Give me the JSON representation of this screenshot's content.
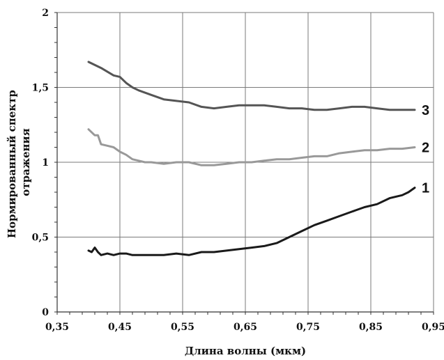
{
  "chart_data": {
    "type": "line",
    "xlabel": "Длина волны (мкм)",
    "ylabel_lines": [
      "Нормированный спектр",
      "отражения"
    ],
    "xlim": [
      0.35,
      0.95
    ],
    "ylim": [
      0,
      2
    ],
    "x_ticks": [
      0.35,
      0.45,
      0.55,
      0.65,
      0.75,
      0.85,
      0.95
    ],
    "x_tick_labels": [
      "0,35",
      "0,45",
      "0,55",
      "0,65",
      "0,75",
      "0,85",
      "0,95"
    ],
    "y_ticks": [
      0,
      0.5,
      1,
      1.5,
      2
    ],
    "y_tick_labels": [
      "0",
      "0,5",
      "1",
      "1,5",
      "2"
    ],
    "grid": true,
    "series": [
      {
        "name": "1",
        "color": "#1a1a1a",
        "x": [
          0.4,
          0.405,
          0.41,
          0.415,
          0.42,
          0.43,
          0.44,
          0.45,
          0.46,
          0.47,
          0.48,
          0.49,
          0.5,
          0.52,
          0.54,
          0.56,
          0.58,
          0.6,
          0.62,
          0.64,
          0.66,
          0.68,
          0.7,
          0.72,
          0.74,
          0.76,
          0.78,
          0.8,
          0.82,
          0.84,
          0.86,
          0.88,
          0.9,
          0.91,
          0.92
        ],
        "y": [
          0.41,
          0.4,
          0.43,
          0.4,
          0.38,
          0.39,
          0.38,
          0.39,
          0.39,
          0.38,
          0.38,
          0.38,
          0.38,
          0.38,
          0.39,
          0.38,
          0.4,
          0.4,
          0.41,
          0.42,
          0.43,
          0.44,
          0.46,
          0.5,
          0.54,
          0.58,
          0.61,
          0.64,
          0.67,
          0.7,
          0.72,
          0.76,
          0.78,
          0.8,
          0.83
        ]
      },
      {
        "name": "2",
        "color": "#999999",
        "x": [
          0.4,
          0.41,
          0.415,
          0.42,
          0.43,
          0.44,
          0.45,
          0.46,
          0.47,
          0.48,
          0.49,
          0.5,
          0.52,
          0.54,
          0.56,
          0.58,
          0.6,
          0.62,
          0.64,
          0.66,
          0.68,
          0.7,
          0.72,
          0.74,
          0.76,
          0.78,
          0.8,
          0.82,
          0.84,
          0.86,
          0.88,
          0.9,
          0.92
        ],
        "y": [
          1.22,
          1.18,
          1.18,
          1.12,
          1.11,
          1.1,
          1.07,
          1.05,
          1.02,
          1.01,
          1.0,
          1.0,
          0.99,
          1.0,
          1.0,
          0.98,
          0.98,
          0.99,
          1.0,
          1.0,
          1.01,
          1.02,
          1.02,
          1.03,
          1.04,
          1.04,
          1.06,
          1.07,
          1.08,
          1.08,
          1.09,
          1.09,
          1.1
        ]
      },
      {
        "name": "3",
        "color": "#555555",
        "x": [
          0.4,
          0.42,
          0.44,
          0.45,
          0.46,
          0.47,
          0.48,
          0.5,
          0.52,
          0.54,
          0.56,
          0.58,
          0.6,
          0.62,
          0.64,
          0.66,
          0.68,
          0.7,
          0.72,
          0.74,
          0.76,
          0.78,
          0.8,
          0.82,
          0.84,
          0.86,
          0.88,
          0.9,
          0.92
        ],
        "y": [
          1.67,
          1.63,
          1.58,
          1.57,
          1.53,
          1.5,
          1.48,
          1.45,
          1.42,
          1.41,
          1.4,
          1.37,
          1.36,
          1.37,
          1.38,
          1.38,
          1.38,
          1.37,
          1.36,
          1.36,
          1.35,
          1.35,
          1.36,
          1.37,
          1.37,
          1.36,
          1.35,
          1.35,
          1.35
        ]
      }
    ]
  }
}
